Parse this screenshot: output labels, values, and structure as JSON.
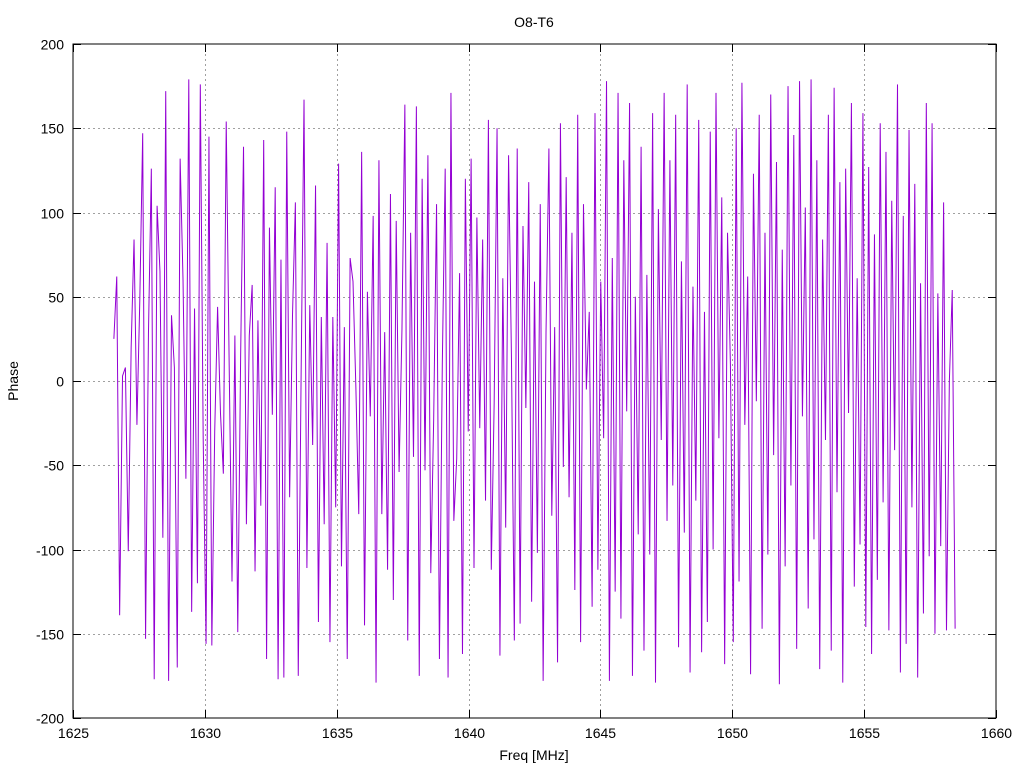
{
  "chart_data": {
    "type": "line",
    "title": "O8-T6",
    "xlabel": "Freq [MHz]",
    "ylabel": "Phase",
    "xlim": [
      1625,
      1660
    ],
    "ylim": [
      -200,
      200
    ],
    "xticks": [
      1625,
      1630,
      1635,
      1640,
      1645,
      1650,
      1655,
      1660
    ],
    "yticks": [
      -200,
      -150,
      -100,
      -50,
      0,
      50,
      100,
      150,
      200
    ],
    "grid": true,
    "series": [
      {
        "color": "#9400d3",
        "x_start": 1626.55,
        "x_end": 1658.45,
        "values": [
          25,
          62,
          -139,
          3,
          8,
          -101,
          20,
          84,
          -26,
          48,
          147,
          -153,
          28,
          126,
          -177,
          104,
          65,
          -93,
          172,
          -178,
          39,
          8,
          -170,
          132,
          60,
          -58,
          179,
          -137,
          43,
          -120,
          176,
          -34,
          -156,
          145,
          -157,
          -30,
          44,
          -19,
          -55,
          154,
          12,
          -119,
          27,
          -149,
          15,
          139,
          -85,
          27,
          57,
          -113,
          36,
          -74,
          143,
          -165,
          91,
          -20,
          115,
          -177,
          72,
          -176,
          148,
          -69,
          39,
          106,
          -175,
          5,
          167,
          -111,
          45,
          -38,
          116,
          -143,
          38,
          -85,
          82,
          -155,
          38,
          -75,
          129,
          -110,
          32,
          -165,
          73,
          59,
          -4,
          -79,
          136,
          -145,
          53,
          -21,
          98,
          -179,
          131,
          -79,
          29,
          -112,
          111,
          -130,
          95,
          -54,
          31,
          164,
          -154,
          88,
          -45,
          163,
          -175,
          120,
          -53,
          134,
          -114,
          -23,
          105,
          -165,
          10,
          126,
          -176,
          171,
          -83,
          -46,
          64,
          -162,
          120,
          -30,
          132,
          -111,
          97,
          -28,
          84,
          -71,
          155,
          -112,
          -13,
          150,
          -163,
          61,
          -87,
          134,
          14,
          -154,
          138,
          -144,
          92,
          -16,
          118,
          -131,
          59,
          -102,
          105,
          -178,
          29,
          138,
          -80,
          32,
          -167,
          153,
          -51,
          121,
          -69,
          88,
          -124,
          158,
          -155,
          105,
          -5,
          41,
          -134,
          159,
          -112,
          59,
          -34,
          178,
          -178,
          73,
          -125,
          171,
          -141,
          131,
          -18,
          165,
          -175,
          50,
          -91,
          139,
          -160,
          63,
          -103,
          159,
          -179,
          102,
          -35,
          171,
          -83,
          131,
          -62,
          158,
          -158,
          71,
          -90,
          176,
          -173,
          56,
          -71,
          155,
          -161,
          41,
          -143,
          148,
          -100,
          171,
          -34,
          109,
          -168,
          88,
          10,
          -155,
          150,
          -119,
          177,
          -26,
          62,
          -174,
          123,
          -12,
          158,
          -147,
          88,
          -103,
          170,
          -44,
          130,
          -180,
          78,
          -110,
          175,
          -62,
          146,
          -159,
          178,
          -21,
          103,
          -135,
          179,
          -94,
          131,
          -171,
          84,
          -35,
          158,
          -160,
          174,
          -66,
          118,
          -179,
          126,
          -19,
          165,
          -122,
          61,
          -97,
          159,
          -146,
          127,
          -162,
          87,
          -118,
          153,
          -72,
          136,
          -148,
          107,
          -41,
          176,
          -173,
          98,
          -156,
          149,
          -75,
          117,
          -176,
          58,
          -138,
          165,
          -104,
          153,
          -150,
          52,
          -98,
          106,
          -148,
          0,
          54,
          -147
        ]
      }
    ]
  }
}
